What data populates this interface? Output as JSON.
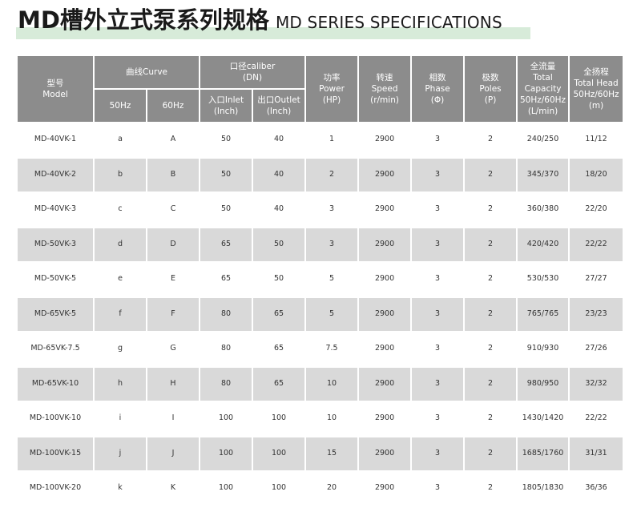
{
  "title": {
    "cn": "MD槽外立式泵系列规格",
    "en": "MD SERIES SPECIFICATIONS",
    "highlight_color": "#d7ebd9"
  },
  "headers": {
    "model": [
      "型号",
      "Model"
    ],
    "curve": "曲线Curve",
    "hz50": "50Hz",
    "hz60": "60Hz",
    "caliber": [
      "口径caliber",
      "(DN)"
    ],
    "inlet": [
      "入口Inlet",
      "(Inch)"
    ],
    "outlet": [
      "出口Outlet",
      "(Inch)"
    ],
    "power": [
      "功率",
      "Power",
      "(HP)"
    ],
    "speed": [
      "转速",
      "Speed",
      "(r/min)"
    ],
    "phase": [
      "相数",
      "Phase",
      "(Φ)"
    ],
    "poles": [
      "极数",
      "Poles",
      "(P)"
    ],
    "capacity": [
      "全流量",
      "Total",
      "Capacity",
      "50Hz/60Hz",
      "(L/min)"
    ],
    "head": [
      "全扬程",
      "Total Head",
      "50Hz/60Hz",
      "(m)"
    ]
  },
  "rows": [
    [
      "MD-40VK-1",
      "a",
      "A",
      "50",
      "40",
      "1",
      "2900",
      "3",
      "2",
      "240/250",
      "11/12"
    ],
    [
      "MD-40VK-2",
      "b",
      "B",
      "50",
      "40",
      "2",
      "2900",
      "3",
      "2",
      "345/370",
      "18/20"
    ],
    [
      "MD-40VK-3",
      "c",
      "C",
      "50",
      "40",
      "3",
      "2900",
      "3",
      "2",
      "360/380",
      "22/20"
    ],
    [
      "MD-50VK-3",
      "d",
      "D",
      "65",
      "50",
      "3",
      "2900",
      "3",
      "2",
      "420/420",
      "22/22"
    ],
    [
      "MD-50VK-5",
      "e",
      "E",
      "65",
      "50",
      "5",
      "2900",
      "3",
      "2",
      "530/530",
      "27/27"
    ],
    [
      "MD-65VK-5",
      "f",
      "F",
      "80",
      "65",
      "5",
      "2900",
      "3",
      "2",
      "765/765",
      "23/23"
    ],
    [
      "MD-65VK-7.5",
      "g",
      "G",
      "80",
      "65",
      "7.5",
      "2900",
      "3",
      "2",
      "910/930",
      "27/26"
    ],
    [
      "MD-65VK-10",
      "h",
      "H",
      "80",
      "65",
      "10",
      "2900",
      "3",
      "2",
      "980/950",
      "32/32"
    ],
    [
      "MD-100VK-10",
      "i",
      "I",
      "100",
      "100",
      "10",
      "2900",
      "3",
      "2",
      "1430/1420",
      "22/22"
    ],
    [
      "MD-100VK-15",
      "j",
      "J",
      "100",
      "100",
      "15",
      "2900",
      "3",
      "2",
      "1685/1760",
      "31/31"
    ],
    [
      "MD-100VK-20",
      "k",
      "K",
      "100",
      "100",
      "20",
      "2900",
      "3",
      "2",
      "1805/1830",
      "36/36"
    ]
  ]
}
